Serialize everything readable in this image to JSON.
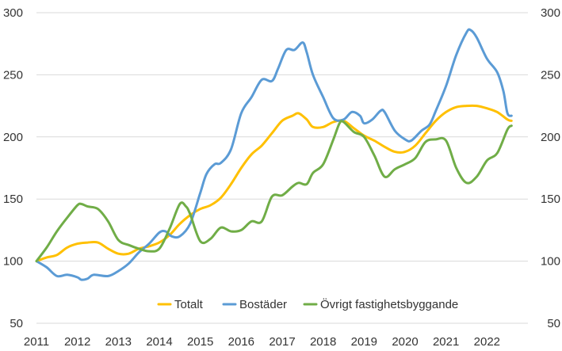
{
  "chart_data": {
    "type": "line",
    "title": "",
    "xlabel": "",
    "ylabel": "",
    "x_ticks": [
      "2011",
      "2012",
      "2013",
      "2014",
      "2015",
      "2016",
      "2017",
      "2018",
      "2019",
      "2020",
      "2021",
      "2022"
    ],
    "xlim": [
      2011.0,
      2023.0
    ],
    "ylim": [
      50,
      300
    ],
    "y_ticks": [
      50,
      100,
      150,
      200,
      250,
      300
    ],
    "y_axes": "both",
    "grid": "horizontal",
    "legend": {
      "position": "bottom-inside"
    },
    "series": [
      {
        "name": "Totalt",
        "color": "#FFC000",
        "points": [
          [
            2011.0,
            100
          ],
          [
            2011.25,
            103
          ],
          [
            2011.5,
            105
          ],
          [
            2011.75,
            111
          ],
          [
            2012.0,
            114
          ],
          [
            2012.25,
            115
          ],
          [
            2012.5,
            115
          ],
          [
            2012.75,
            110
          ],
          [
            2013.0,
            106
          ],
          [
            2013.25,
            106
          ],
          [
            2013.5,
            110
          ],
          [
            2013.75,
            112
          ],
          [
            2014.0,
            115
          ],
          [
            2014.25,
            121
          ],
          [
            2014.5,
            130
          ],
          [
            2014.75,
            137
          ],
          [
            2015.0,
            142
          ],
          [
            2015.25,
            145
          ],
          [
            2015.5,
            151
          ],
          [
            2015.75,
            162
          ],
          [
            2016.0,
            175
          ],
          [
            2016.25,
            186
          ],
          [
            2016.5,
            193
          ],
          [
            2016.75,
            203
          ],
          [
            2017.0,
            213
          ],
          [
            2017.25,
            217
          ],
          [
            2017.4,
            219
          ],
          [
            2017.6,
            214
          ],
          [
            2017.75,
            208
          ],
          [
            2018.0,
            208
          ],
          [
            2018.25,
            212
          ],
          [
            2018.5,
            213
          ],
          [
            2018.75,
            207
          ],
          [
            2019.0,
            201
          ],
          [
            2019.25,
            197
          ],
          [
            2019.5,
            192
          ],
          [
            2019.75,
            188
          ],
          [
            2020.0,
            188
          ],
          [
            2020.25,
            193
          ],
          [
            2020.5,
            203
          ],
          [
            2020.75,
            213
          ],
          [
            2021.0,
            220
          ],
          [
            2021.25,
            224
          ],
          [
            2021.5,
            225
          ],
          [
            2021.75,
            225
          ],
          [
            2022.0,
            223
          ],
          [
            2022.25,
            220
          ],
          [
            2022.5,
            214
          ],
          [
            2022.6,
            213
          ]
        ]
      },
      {
        "name": "Bostäder",
        "color": "#5B9BD5",
        "points": [
          [
            2011.0,
            100
          ],
          [
            2011.25,
            95
          ],
          [
            2011.5,
            88
          ],
          [
            2011.75,
            89
          ],
          [
            2012.0,
            87
          ],
          [
            2012.1,
            85
          ],
          [
            2012.25,
            86
          ],
          [
            2012.4,
            89
          ],
          [
            2012.75,
            88
          ],
          [
            2013.0,
            92
          ],
          [
            2013.25,
            98
          ],
          [
            2013.5,
            107
          ],
          [
            2013.75,
            114
          ],
          [
            2014.0,
            123
          ],
          [
            2014.15,
            124
          ],
          [
            2014.3,
            120
          ],
          [
            2014.5,
            120
          ],
          [
            2014.75,
            130
          ],
          [
            2015.0,
            155
          ],
          [
            2015.15,
            170
          ],
          [
            2015.35,
            178
          ],
          [
            2015.5,
            179
          ],
          [
            2015.75,
            190
          ],
          [
            2016.0,
            219
          ],
          [
            2016.25,
            232
          ],
          [
            2016.5,
            246
          ],
          [
            2016.75,
            245
          ],
          [
            2016.9,
            255
          ],
          [
            2017.1,
            270
          ],
          [
            2017.3,
            270
          ],
          [
            2017.5,
            276
          ],
          [
            2017.6,
            268
          ],
          [
            2017.75,
            250
          ],
          [
            2018.0,
            232
          ],
          [
            2018.25,
            215
          ],
          [
            2018.5,
            214
          ],
          [
            2018.7,
            220
          ],
          [
            2018.9,
            217
          ],
          [
            2019.0,
            211
          ],
          [
            2019.2,
            214
          ],
          [
            2019.4,
            221
          ],
          [
            2019.5,
            220
          ],
          [
            2019.75,
            205
          ],
          [
            2020.0,
            198
          ],
          [
            2020.15,
            197
          ],
          [
            2020.4,
            205
          ],
          [
            2020.6,
            210
          ],
          [
            2020.75,
            221
          ],
          [
            2021.0,
            241
          ],
          [
            2021.25,
            266
          ],
          [
            2021.5,
            284
          ],
          [
            2021.6,
            286
          ],
          [
            2021.75,
            280
          ],
          [
            2022.0,
            263
          ],
          [
            2022.25,
            252
          ],
          [
            2022.4,
            237
          ],
          [
            2022.5,
            219
          ],
          [
            2022.6,
            217
          ]
        ]
      },
      {
        "name": "Övrigt fastighetsbyggande",
        "color": "#70AD47",
        "points": [
          [
            2011.0,
            100
          ],
          [
            2011.25,
            111
          ],
          [
            2011.5,
            124
          ],
          [
            2011.75,
            135
          ],
          [
            2012.0,
            145
          ],
          [
            2012.1,
            146
          ],
          [
            2012.25,
            144
          ],
          [
            2012.5,
            142
          ],
          [
            2012.75,
            132
          ],
          [
            2013.0,
            117
          ],
          [
            2013.25,
            113
          ],
          [
            2013.5,
            110
          ],
          [
            2013.75,
            108
          ],
          [
            2014.0,
            110
          ],
          [
            2014.25,
            126
          ],
          [
            2014.5,
            146
          ],
          [
            2014.65,
            144
          ],
          [
            2014.75,
            138
          ],
          [
            2015.0,
            116
          ],
          [
            2015.25,
            118
          ],
          [
            2015.5,
            127
          ],
          [
            2015.75,
            124
          ],
          [
            2016.0,
            125
          ],
          [
            2016.25,
            132
          ],
          [
            2016.5,
            132
          ],
          [
            2016.75,
            152
          ],
          [
            2017.0,
            153
          ],
          [
            2017.25,
            160
          ],
          [
            2017.4,
            163
          ],
          [
            2017.6,
            162
          ],
          [
            2017.75,
            171
          ],
          [
            2018.0,
            178
          ],
          [
            2018.25,
            198
          ],
          [
            2018.4,
            211
          ],
          [
            2018.5,
            212
          ],
          [
            2018.75,
            204
          ],
          [
            2019.0,
            200
          ],
          [
            2019.25,
            185
          ],
          [
            2019.5,
            168
          ],
          [
            2019.75,
            174
          ],
          [
            2020.0,
            178
          ],
          [
            2020.25,
            183
          ],
          [
            2020.5,
            196
          ],
          [
            2020.75,
            198
          ],
          [
            2021.0,
            197
          ],
          [
            2021.25,
            175
          ],
          [
            2021.5,
            163
          ],
          [
            2021.75,
            168
          ],
          [
            2022.0,
            181
          ],
          [
            2022.25,
            187
          ],
          [
            2022.5,
            206
          ],
          [
            2022.6,
            209
          ]
        ]
      }
    ]
  }
}
